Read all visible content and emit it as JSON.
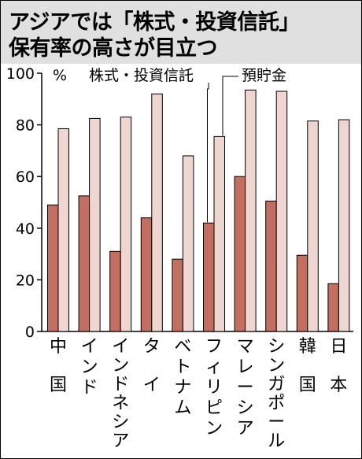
{
  "title_lines": [
    "アジアでは「株式・投資信託」",
    "保有率の高さが目立つ"
  ],
  "chart_data": {
    "type": "bar",
    "title": "アジアでは「株式・投資信託」保有率の高さが目立つ",
    "unit": "%",
    "ylim": [
      0,
      100
    ],
    "yticks": [
      0,
      20,
      40,
      60,
      80,
      100
    ],
    "categories": [
      "中国",
      "インド",
      "インドネシア",
      "タイ",
      "ベトナム",
      "フィリピン",
      "マレーシア",
      "シンガポール",
      "韓国",
      "日本"
    ],
    "series": [
      {
        "name": "株式・投資信託",
        "color": "#c26f62",
        "values": [
          49,
          52.5,
          31,
          44,
          28,
          42,
          60,
          50.5,
          29.5,
          18.5
        ]
      },
      {
        "name": "預貯金",
        "color": "#efd6d0",
        "values": [
          78.5,
          82.5,
          83,
          92,
          68,
          75.5,
          93.5,
          93,
          81.5,
          82
        ]
      }
    ],
    "grid": false,
    "legend": "top, with leader lines"
  }
}
